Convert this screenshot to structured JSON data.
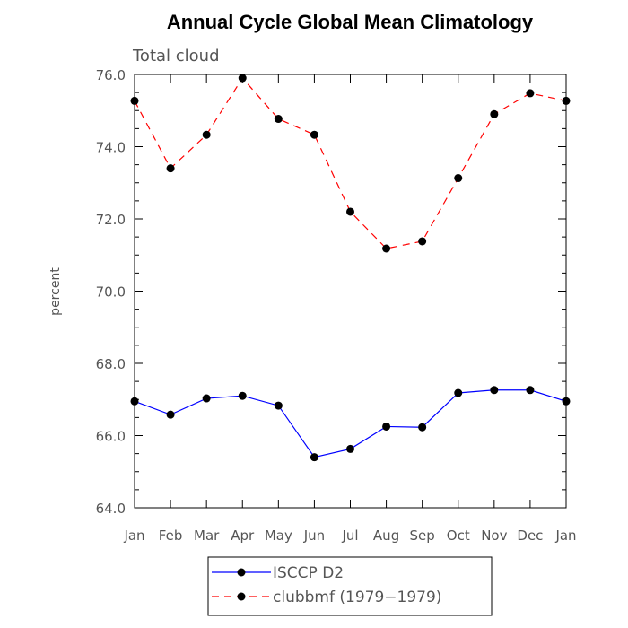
{
  "chart_data": {
    "type": "line",
    "title": "Annual Cycle Global Mean Climatology",
    "subtitle": "Total cloud",
    "xlabel": "",
    "ylabel": "percent",
    "categories": [
      "Jan",
      "Feb",
      "Mar",
      "Apr",
      "May",
      "Jun",
      "Jul",
      "Aug",
      "Sep",
      "Oct",
      "Nov",
      "Dec",
      "Jan"
    ],
    "ylim": [
      64.0,
      76.0
    ],
    "yticks": [
      64.0,
      66.0,
      68.0,
      70.0,
      72.0,
      74.0,
      76.0
    ],
    "ytick_labels": [
      "64.0",
      "66.0",
      "68.0",
      "70.0",
      "72.0",
      "74.0",
      "76.0"
    ],
    "series": [
      {
        "name": "ISCCP D2",
        "color": "#0000ff",
        "style": "solid",
        "values": [
          66.95,
          66.58,
          67.03,
          67.1,
          66.83,
          65.4,
          65.63,
          66.25,
          66.23,
          67.18,
          67.26,
          67.26,
          66.95
        ]
      },
      {
        "name": "clubbmf (1979−1979)",
        "color": "#ff0000",
        "style": "dashed",
        "values": [
          75.27,
          73.4,
          74.33,
          75.9,
          74.77,
          74.33,
          72.2,
          71.18,
          71.38,
          73.13,
          74.9,
          75.48,
          75.27
        ]
      }
    ],
    "legend_position": "bottom"
  }
}
